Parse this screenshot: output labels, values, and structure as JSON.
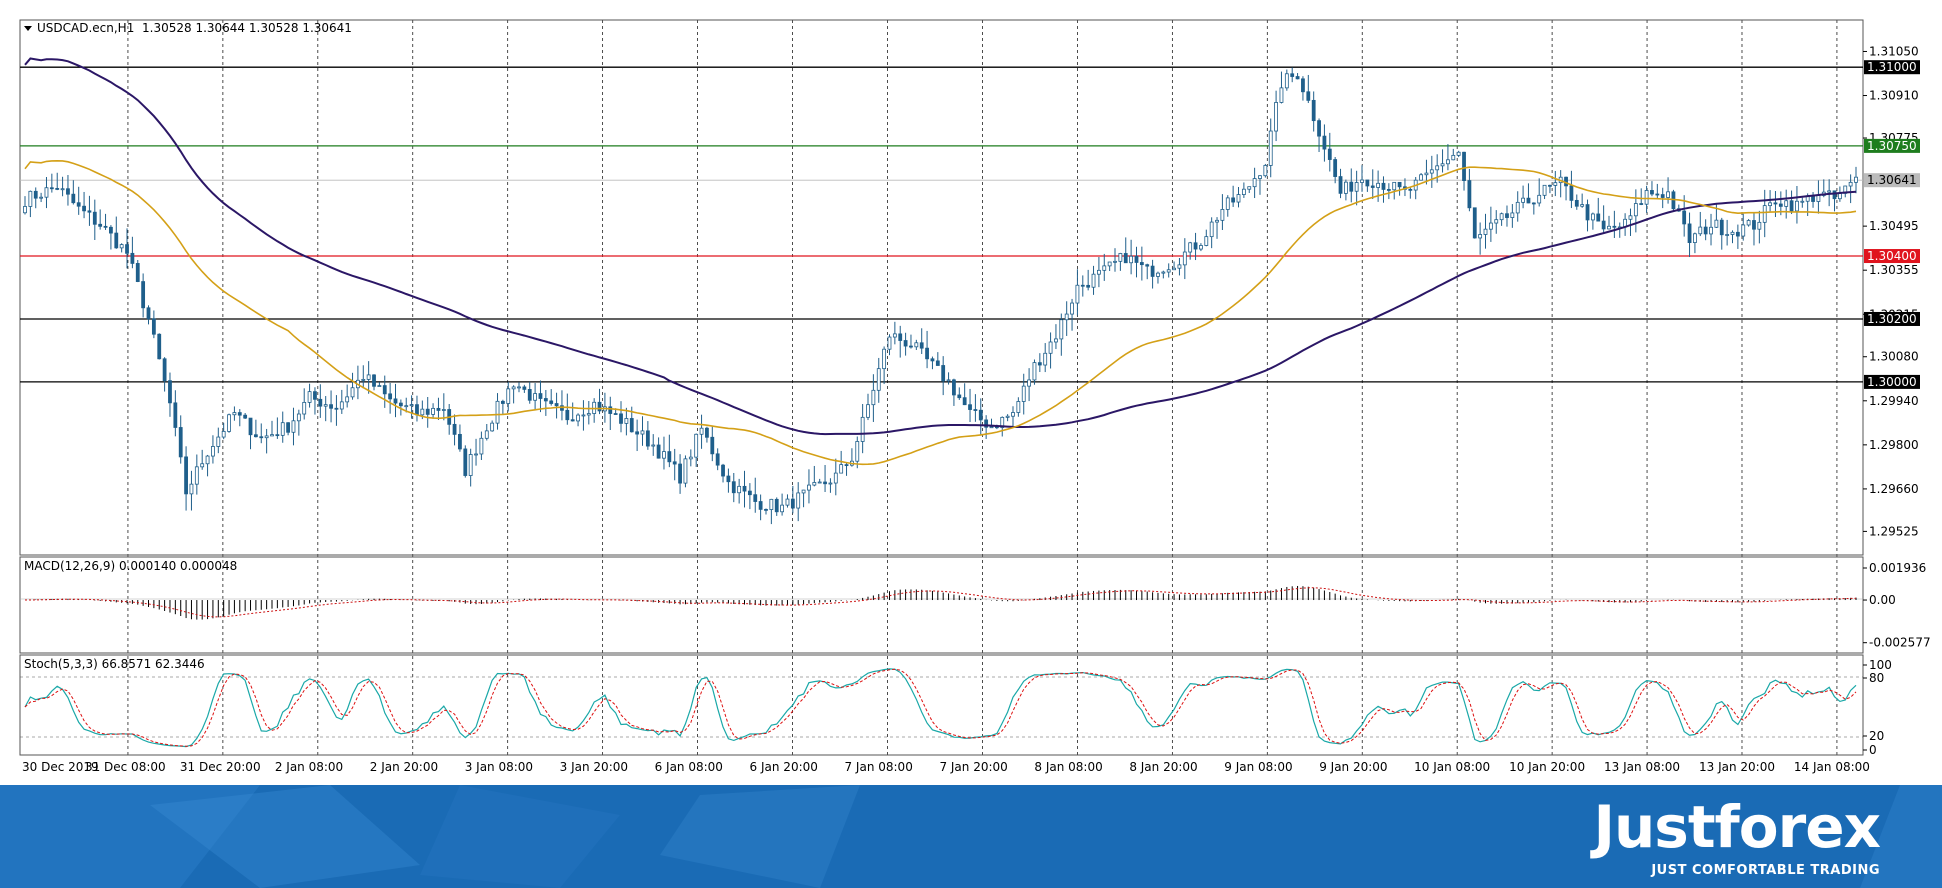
{
  "chart_data": [
    {
      "type": "candlestick",
      "instrument_label": "USDCAD.ecn,H1",
      "ohlc_label": "1.30528 1.30644 1.30528 1.30641",
      "ylim": [
        1.2945,
        1.3115
      ],
      "price_ticks": [
        "1.31050",
        "1.30910",
        "1.30775",
        "1.30495",
        "1.30355",
        "1.30215",
        "1.30080",
        "1.29940",
        "1.29800",
        "1.29660",
        "1.29525"
      ],
      "x_ticks": [
        "30 Dec 2019",
        "31 Dec 08:00",
        "31 Dec 20:00",
        "2 Jan 08:00",
        "2 Jan 20:00",
        "3 Jan 08:00",
        "3 Jan 20:00",
        "6 Jan 08:00",
        "6 Jan 20:00",
        "7 Jan 08:00",
        "7 Jan 20:00",
        "8 Jan 08:00",
        "8 Jan 20:00",
        "9 Jan 08:00",
        "9 Jan 20:00",
        "10 Jan 08:00",
        "10 Jan 20:00",
        "13 Jan 08:00",
        "13 Jan 20:00",
        "14 Jan 08:00"
      ],
      "levels": [
        {
          "label": "1.31000",
          "value": 1.31,
          "color": "#000000"
        },
        {
          "label": "1.30750",
          "value": 1.3075,
          "color": "#1e7d1e"
        },
        {
          "label": "1.30641",
          "value": 1.30641,
          "color": "#bbbbbb"
        },
        {
          "label": "1.30400",
          "value": 1.304,
          "color": "#e0141e"
        },
        {
          "label": "1.30200",
          "value": 1.302,
          "color": "#000000"
        },
        {
          "label": "1.30000",
          "value": 1.3,
          "color": "#000000"
        }
      ],
      "close_anchors": [
        [
          0,
          1.3058
        ],
        [
          6,
          1.3062
        ],
        [
          10,
          1.3055
        ],
        [
          14,
          1.305
        ],
        [
          19,
          1.3041
        ],
        [
          23,
          1.302
        ],
        [
          27,
          1.2993
        ],
        [
          30,
          1.2965
        ],
        [
          34,
          1.2978
        ],
        [
          39,
          1.299
        ],
        [
          44,
          1.2982
        ],
        [
          49,
          1.2986
        ],
        [
          53,
          1.2995
        ],
        [
          58,
          1.2992
        ],
        [
          63,
          1.3002
        ],
        [
          68,
          1.2994
        ],
        [
          73,
          1.299
        ],
        [
          78,
          1.2992
        ],
        [
          82,
          1.2972
        ],
        [
          86,
          1.2986
        ],
        [
          91,
          1.3
        ],
        [
          96,
          1.2993
        ],
        [
          101,
          1.2989
        ],
        [
          106,
          1.2993
        ],
        [
          111,
          1.2988
        ],
        [
          117,
          1.298
        ],
        [
          122,
          1.297
        ],
        [
          126,
          1.2985
        ],
        [
          131,
          1.2968
        ],
        [
          136,
          1.2962
        ],
        [
          141,
          1.296
        ],
        [
          146,
          1.2965
        ],
        [
          151,
          1.297
        ],
        [
          154,
          1.2976
        ],
        [
          158,
          1.2998
        ],
        [
          161,
          1.3015
        ],
        [
          165,
          1.3012
        ],
        [
          169,
          1.3005
        ],
        [
          172,
          1.3
        ],
        [
          176,
          1.299
        ],
        [
          180,
          1.2986
        ],
        [
          184,
          1.299
        ],
        [
          188,
          1.3005
        ],
        [
          192,
          1.3015
        ],
        [
          196,
          1.303
        ],
        [
          201,
          1.3035
        ],
        [
          205,
          1.304
        ],
        [
          209,
          1.3035
        ],
        [
          214,
          1.3038
        ],
        [
          219,
          1.3045
        ],
        [
          223,
          1.3055
        ],
        [
          227,
          1.306
        ],
        [
          231,
          1.307
        ],
        [
          234,
          1.3095
        ],
        [
          237,
          1.3098
        ],
        [
          241,
          1.308
        ],
        [
          245,
          1.306
        ],
        [
          249,
          1.3065
        ],
        [
          253,
          1.3063
        ],
        [
          257,
          1.306
        ],
        [
          261,
          1.3065
        ],
        [
          264,
          1.307
        ],
        [
          267,
          1.3073
        ],
        [
          270,
          1.3045
        ],
        [
          274,
          1.305
        ],
        [
          278,
          1.3055
        ],
        [
          282,
          1.306
        ],
        [
          286,
          1.3063
        ],
        [
          290,
          1.3055
        ],
        [
          294,
          1.3048
        ],
        [
          298,
          1.305
        ],
        [
          302,
          1.306
        ],
        [
          306,
          1.306
        ],
        [
          310,
          1.3045
        ],
        [
          314,
          1.305
        ],
        [
          318,
          1.3048
        ],
        [
          322,
          1.305
        ],
        [
          326,
          1.3058
        ],
        [
          330,
          1.3056
        ],
        [
          334,
          1.306
        ],
        [
          337,
          1.3058
        ],
        [
          341,
          1.3064
        ]
      ]
    },
    {
      "type": "line",
      "indicator_label": "MACD(12,26,9) 0.000140 0.000048",
      "ticks": [
        "0.001936",
        "0.00",
        "-0.002577"
      ],
      "ylim": [
        -0.0032,
        0.0026
      ]
    },
    {
      "type": "line",
      "indicator_label": "Stoch(5,3,3) 66.8571 62.3446",
      "ticks": [
        "100",
        "80",
        "20",
        "0"
      ],
      "ylim": [
        0,
        100
      ]
    }
  ],
  "branding": {
    "name": "Justforex",
    "tagline": "JUST COMFORTABLE TRADING",
    "color": "#1a6bb5"
  }
}
